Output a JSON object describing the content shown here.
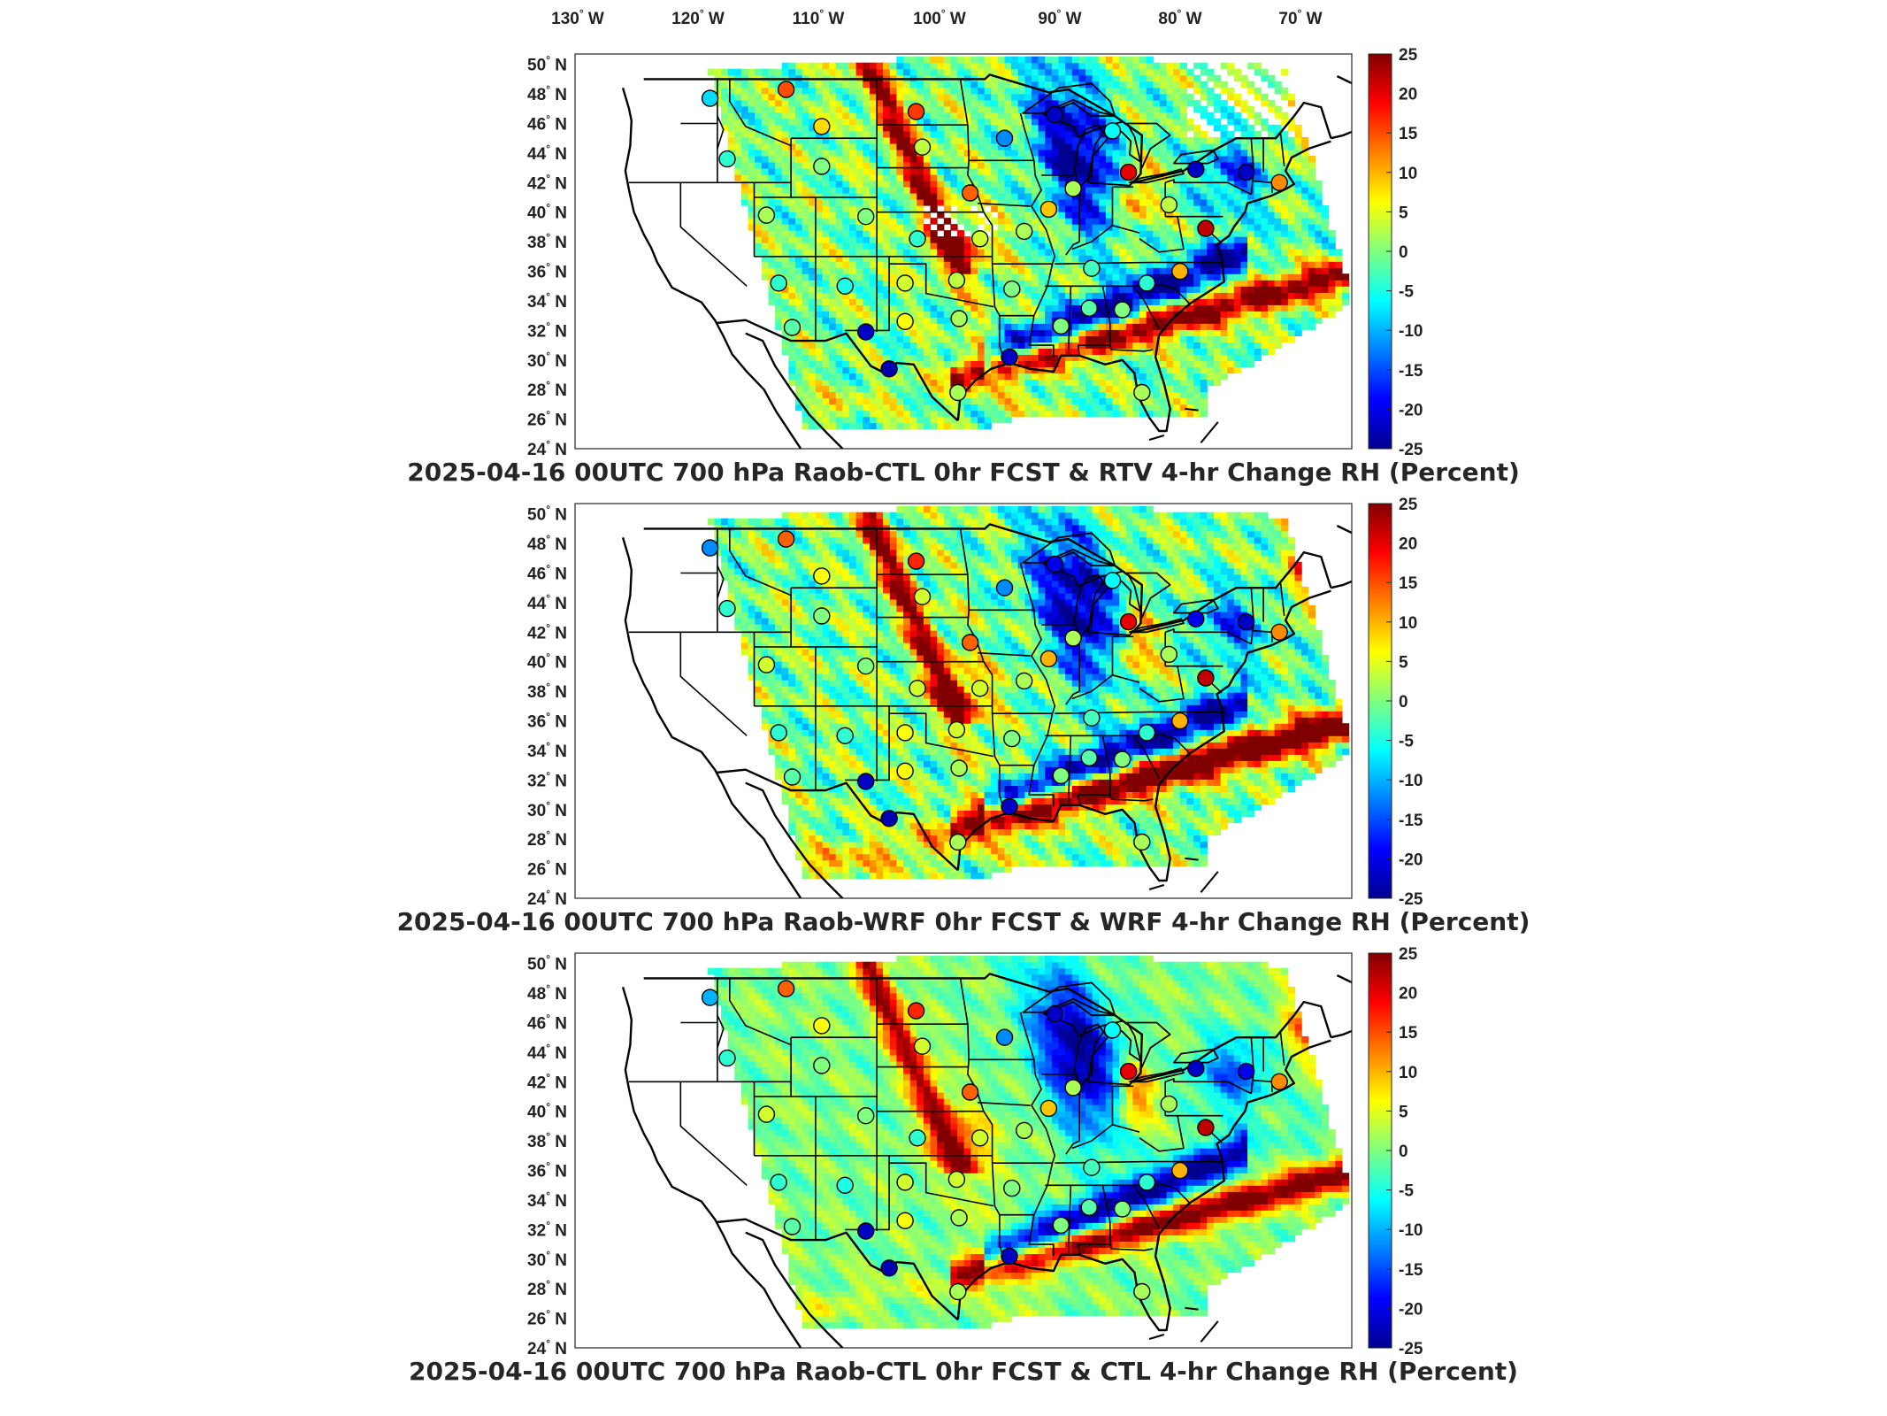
{
  "figure": {
    "top_axis_labels": [
      "130",
      "120",
      "110",
      "100",
      "90",
      "80",
      "70"
    ],
    "top_axis_suffix": "W",
    "lat_labels": [
      "50",
      "48",
      "46",
      "44",
      "42",
      "40",
      "38",
      "36",
      "34",
      "32",
      "30",
      "28",
      "26",
      "24"
    ],
    "lat_suffix": "N"
  },
  "colorbar": {
    "ticks": [
      "25",
      "20",
      "15",
      "10",
      "5",
      "0",
      "-5",
      "-10",
      "-15",
      "-20",
      "-25"
    ],
    "range": [
      -25,
      25
    ],
    "colormap": "jet",
    "colors": [
      "#00008f",
      "#0000ff",
      "#0080ff",
      "#00ffff",
      "#80ff80",
      "#ffff00",
      "#ff8000",
      "#ff0000",
      "#800000"
    ]
  },
  "panels": [
    {
      "title": "2025-04-16 00UTC 700 hPa Raob-CTL 0hr FCST & RTV 4-hr Change RH (Percent)"
    },
    {
      "title": "2025-04-16 00UTC 700 hPa Raob-WRF 0hr FCST & WRF 4-hr Change RH (Percent)"
    },
    {
      "title": "2025-04-16 00UTC 700 hPa Raob-CTL 0hr FCST & CTL 4-hr Change RH (Percent)"
    }
  ],
  "stations": [
    {
      "lon": -117.6,
      "lat": 47.7,
      "v": [
        -8,
        -12,
        -10
      ]
    },
    {
      "lon": -111.4,
      "lat": 48.3,
      "v": [
        15,
        14,
        14
      ]
    },
    {
      "lon": -108.5,
      "lat": 45.8,
      "v": [
        8,
        6,
        6
      ]
    },
    {
      "lon": -100.8,
      "lat": 46.8,
      "v": [
        16,
        17,
        17
      ]
    },
    {
      "lon": -93.6,
      "lat": 45.0,
      "v": [
        -12,
        -12,
        -12
      ]
    },
    {
      "lon": -89.5,
      "lat": 46.6,
      "v": [
        -22,
        -20,
        -22
      ]
    },
    {
      "lon": -84.8,
      "lat": 45.5,
      "v": [
        -6,
        -6,
        -6
      ]
    },
    {
      "lon": -83.5,
      "lat": 42.7,
      "v": [
        20,
        20,
        20
      ]
    },
    {
      "lon": -116.2,
      "lat": 43.6,
      "v": [
        -4,
        -4,
        -4
      ]
    },
    {
      "lon": -108.5,
      "lat": 43.1,
      "v": [
        0,
        0,
        0
      ]
    },
    {
      "lon": -100.3,
      "lat": 44.4,
      "v": [
        3,
        4,
        4
      ]
    },
    {
      "lon": -96.4,
      "lat": 41.3,
      "v": [
        14,
        14,
        14
      ]
    },
    {
      "lon": -90.0,
      "lat": 40.2,
      "v": [
        9,
        10,
        9
      ]
    },
    {
      "lon": -88.0,
      "lat": 41.6,
      "v": [
        2,
        2,
        2
      ]
    },
    {
      "lon": -80.2,
      "lat": 40.5,
      "v": [
        3,
        2,
        2
      ]
    },
    {
      "lon": -78.0,
      "lat": 42.9,
      "v": [
        -22,
        -20,
        -22
      ]
    },
    {
      "lon": -73.9,
      "lat": 42.7,
      "v": [
        -22,
        -22,
        -20
      ]
    },
    {
      "lon": -71.2,
      "lat": 42.0,
      "v": [
        12,
        12,
        12
      ]
    },
    {
      "lon": -77.2,
      "lat": 38.9,
      "v": [
        22,
        22,
        22
      ]
    },
    {
      "lon": -113.0,
      "lat": 39.8,
      "v": [
        2,
        4,
        4
      ]
    },
    {
      "lon": -104.9,
      "lat": 39.7,
      "v": [
        0,
        0,
        0
      ]
    },
    {
      "lon": -100.7,
      "lat": 38.2,
      "v": [
        -4,
        4,
        -4
      ]
    },
    {
      "lon": -95.6,
      "lat": 38.2,
      "v": [
        4,
        4,
        4
      ]
    },
    {
      "lon": -92.0,
      "lat": 38.7,
      "v": [
        2,
        2,
        2
      ]
    },
    {
      "lon": -86.5,
      "lat": 36.2,
      "v": [
        -3,
        -3,
        -3
      ]
    },
    {
      "lon": -82.0,
      "lat": 35.2,
      "v": [
        -4,
        -4,
        -4
      ]
    },
    {
      "lon": -79.3,
      "lat": 36.0,
      "v": [
        10,
        10,
        10
      ]
    },
    {
      "lon": -112.0,
      "lat": 35.2,
      "v": [
        -4,
        -4,
        -4
      ]
    },
    {
      "lon": -106.6,
      "lat": 35.0,
      "v": [
        -5,
        -4,
        -5
      ]
    },
    {
      "lon": -101.7,
      "lat": 35.2,
      "v": [
        4,
        6,
        4
      ]
    },
    {
      "lon": -97.5,
      "lat": 35.4,
      "v": [
        3,
        4,
        4
      ]
    },
    {
      "lon": -93.0,
      "lat": 34.8,
      "v": [
        0,
        0,
        0
      ]
    },
    {
      "lon": -89.0,
      "lat": 32.3,
      "v": [
        0,
        0,
        0
      ]
    },
    {
      "lon": -86.7,
      "lat": 33.5,
      "v": [
        -2,
        -2,
        -2
      ]
    },
    {
      "lon": -84.0,
      "lat": 33.4,
      "v": [
        0,
        0,
        0
      ]
    },
    {
      "lon": -110.9,
      "lat": 32.2,
      "v": [
        -2,
        -2,
        -2
      ]
    },
    {
      "lon": -104.9,
      "lat": 31.9,
      "v": [
        -22,
        -22,
        -22
      ]
    },
    {
      "lon": -101.7,
      "lat": 32.6,
      "v": [
        6,
        6,
        6
      ]
    },
    {
      "lon": -97.3,
      "lat": 32.8,
      "v": [
        2,
        2,
        2
      ]
    },
    {
      "lon": -93.2,
      "lat": 30.2,
      "v": [
        -22,
        -22,
        -22
      ]
    },
    {
      "lon": -103.0,
      "lat": 29.4,
      "v": [
        -23,
        -23,
        -23
      ]
    },
    {
      "lon": -97.4,
      "lat": 27.8,
      "v": [
        2,
        2,
        2
      ]
    },
    {
      "lon": -82.4,
      "lat": 27.8,
      "v": [
        2,
        2,
        2
      ]
    }
  ]
}
